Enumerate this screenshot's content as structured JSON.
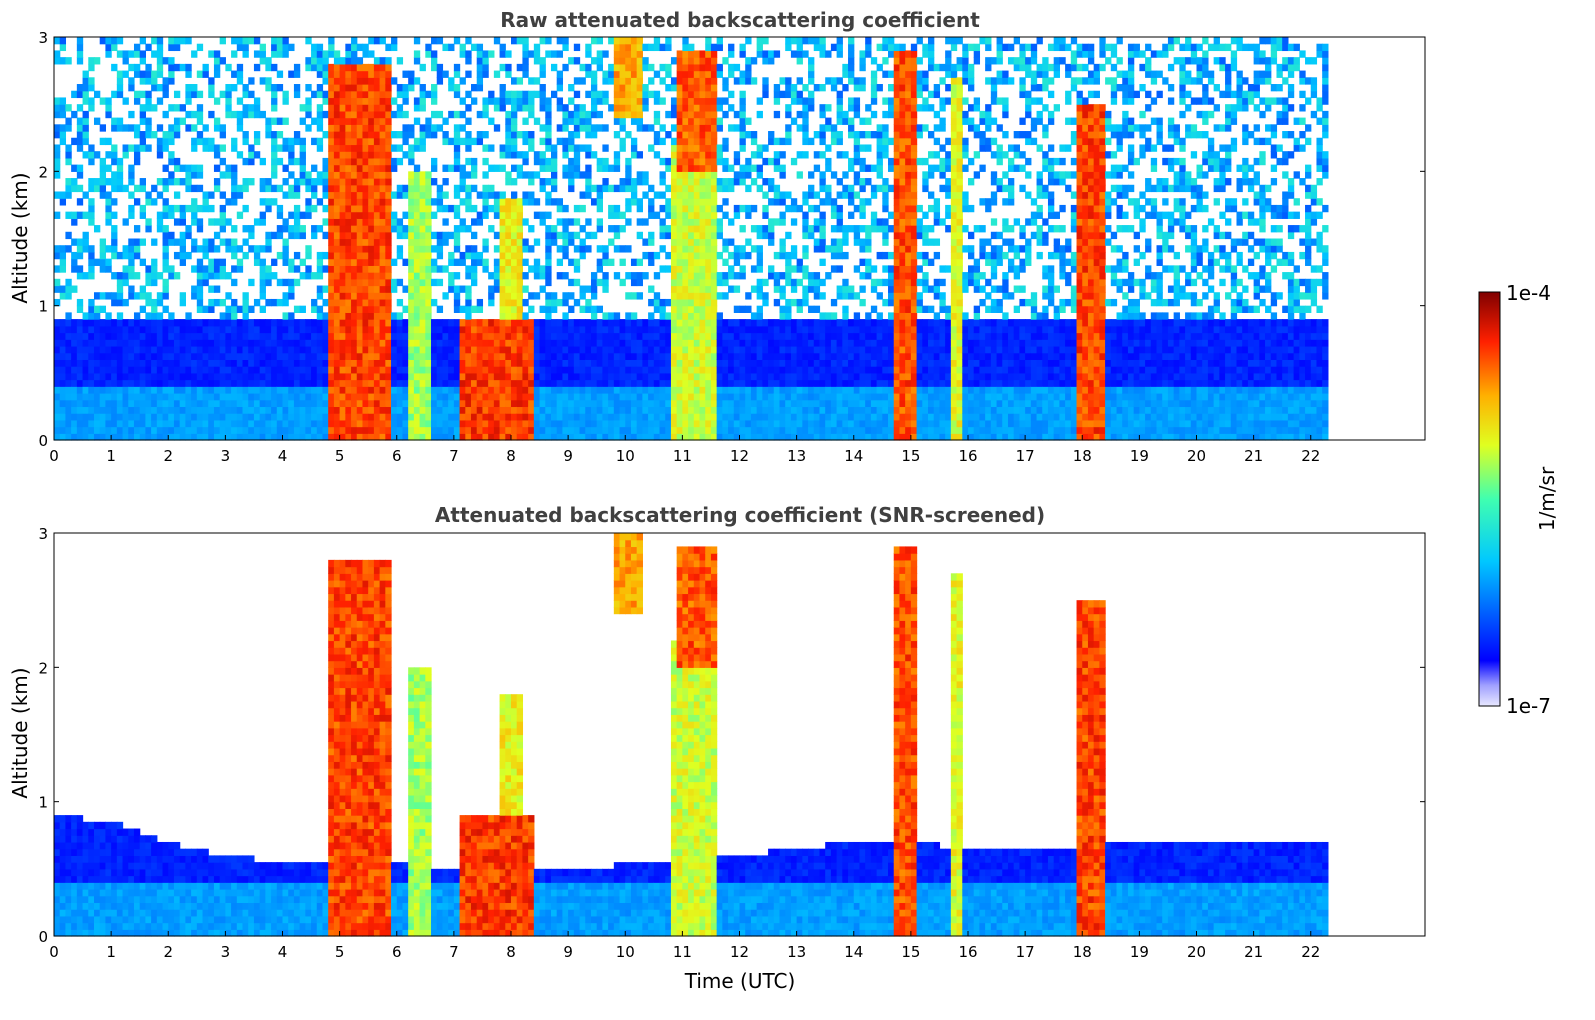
{
  "chart_data": [
    {
      "type": "heatmap",
      "title": "Raw attenuated backscattering coefficient",
      "xlabel": "",
      "ylabel": "Altitude (km)",
      "x_ticks": [
        "0",
        "1",
        "2",
        "3",
        "4",
        "5",
        "6",
        "7",
        "8",
        "9",
        "10",
        "11",
        "12",
        "13",
        "14",
        "15",
        "16",
        "17",
        "18",
        "19",
        "20",
        "21",
        "22"
      ],
      "y_ticks": [
        "0",
        "1",
        "2",
        "3"
      ],
      "xlim": [
        0,
        24
      ],
      "ylim": [
        0,
        3
      ],
      "data_end_hour": 22.3,
      "screened": false,
      "background_levels": [
        {
          "alt": [
            0.0,
            0.4
          ],
          "value": 3.0
        },
        {
          "alt": [
            0.4,
            0.9
          ],
          "value": 1.5
        },
        {
          "alt": [
            0.9,
            3.0
          ],
          "value": 3.0
        }
      ],
      "plumes": [
        {
          "x": [
            4.8,
            5.9
          ],
          "alt": [
            0,
            2.8
          ],
          "value": 8.5
        },
        {
          "x": [
            6.2,
            6.6
          ],
          "alt": [
            0,
            2.0
          ],
          "value": 5.8
        },
        {
          "x": [
            7.1,
            8.4
          ],
          "alt": [
            0,
            0.9
          ],
          "value": 8.6
        },
        {
          "x": [
            7.8,
            8.2
          ],
          "alt": [
            0.9,
            1.8
          ],
          "value": 6.6
        },
        {
          "x": [
            9.8,
            10.3
          ],
          "alt": [
            2.4,
            3.0
          ],
          "value": 7.5
        },
        {
          "x": [
            10.8,
            11.6
          ],
          "alt": [
            0,
            2.2
          ],
          "value": 6.2
        },
        {
          "x": [
            10.9,
            11.6
          ],
          "alt": [
            2.0,
            2.9
          ],
          "value": 8.3
        },
        {
          "x": [
            14.7,
            15.1
          ],
          "alt": [
            0,
            2.9
          ],
          "value": 8.4
        },
        {
          "x": [
            15.7,
            15.9
          ],
          "alt": [
            0,
            2.7
          ],
          "value": 6.4
        },
        {
          "x": [
            17.9,
            18.4
          ],
          "alt": [
            0,
            2.5
          ],
          "value": 8.5
        }
      ],
      "colorbar": {
        "label": "1/m/sr",
        "min_label": "1e-7",
        "max_label": "1e-4",
        "scale": "log"
      }
    },
    {
      "type": "heatmap",
      "title": "Attenuated backscattering coefficient (SNR-screened)",
      "xlabel": "Time (UTC)",
      "ylabel": "Altitude (km)",
      "x_ticks": [
        "0",
        "1",
        "2",
        "3",
        "4",
        "5",
        "6",
        "7",
        "8",
        "9",
        "10",
        "11",
        "12",
        "13",
        "14",
        "15",
        "16",
        "17",
        "18",
        "19",
        "20",
        "21",
        "22"
      ],
      "y_ticks": [
        "0",
        "1",
        "2",
        "3"
      ],
      "xlim": [
        0,
        24
      ],
      "ylim": [
        0,
        3
      ],
      "data_end_hour": 22.3,
      "screened": true,
      "boundary_layer_top_km": [
        {
          "x": 0,
          "alt": 0.9
        },
        {
          "x": 1,
          "alt": 0.85
        },
        {
          "x": 2,
          "alt": 0.7
        },
        {
          "x": 3,
          "alt": 0.6
        },
        {
          "x": 4,
          "alt": 0.55
        },
        {
          "x": 9,
          "alt": 0.5
        },
        {
          "x": 12,
          "alt": 0.6
        },
        {
          "x": 14,
          "alt": 0.7
        },
        {
          "x": 17,
          "alt": 0.65
        },
        {
          "x": 19,
          "alt": 0.7
        },
        {
          "x": 22.3,
          "alt": 0.7
        }
      ],
      "colorbar": {
        "label": "1/m/sr",
        "min_label": "1e-7",
        "max_label": "1e-4",
        "scale": "log"
      }
    }
  ],
  "colors": {
    "jet_top": "#800000",
    "jet_bottom": "#000080",
    "title_color": "#404040"
  }
}
